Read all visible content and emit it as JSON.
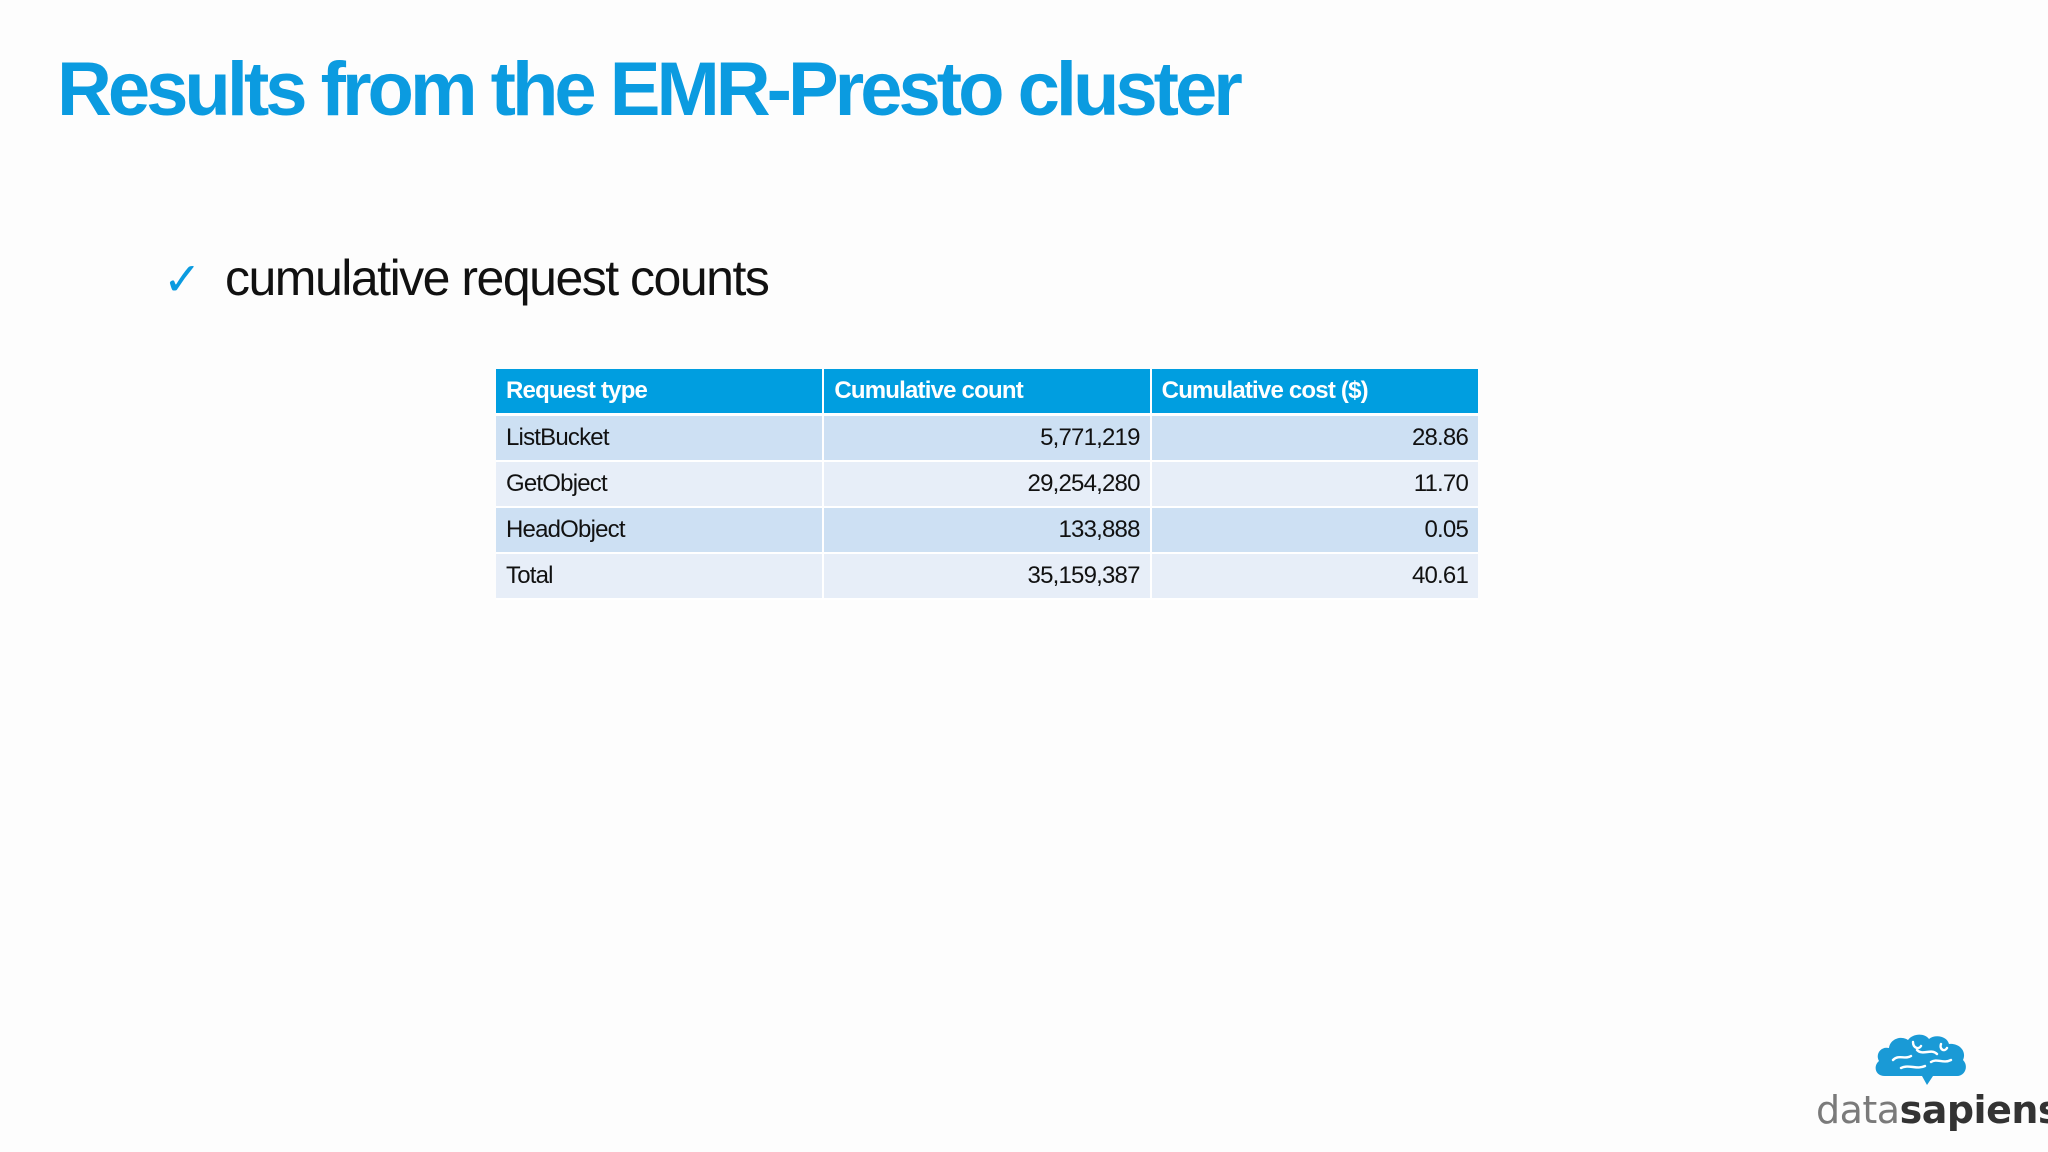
{
  "slide": {
    "title": "Results from the EMR-Presto cluster",
    "bullet": {
      "icon": "checkmark-icon",
      "glyph": "✓",
      "text": "cumulative request counts"
    }
  },
  "table": {
    "headers": [
      "Request type",
      "Cumulative count",
      "Cumulative cost ($)"
    ],
    "rows": [
      [
        "ListBucket",
        "5,771,219",
        "28.86"
      ],
      [
        "GetObject",
        "29,254,280",
        "11.70"
      ],
      [
        "HeadObject",
        "133,888",
        "0.05"
      ],
      [
        "Total",
        "35,159,387",
        "40.61"
      ]
    ]
  },
  "logo": {
    "icon": "brain-icon",
    "part1": "data",
    "part2": "sapiens"
  },
  "colors": {
    "accent": "#0b9be0",
    "header_bg": "#009ee0",
    "row_dark": "#cde0f3",
    "row_light": "#e7eef8"
  }
}
